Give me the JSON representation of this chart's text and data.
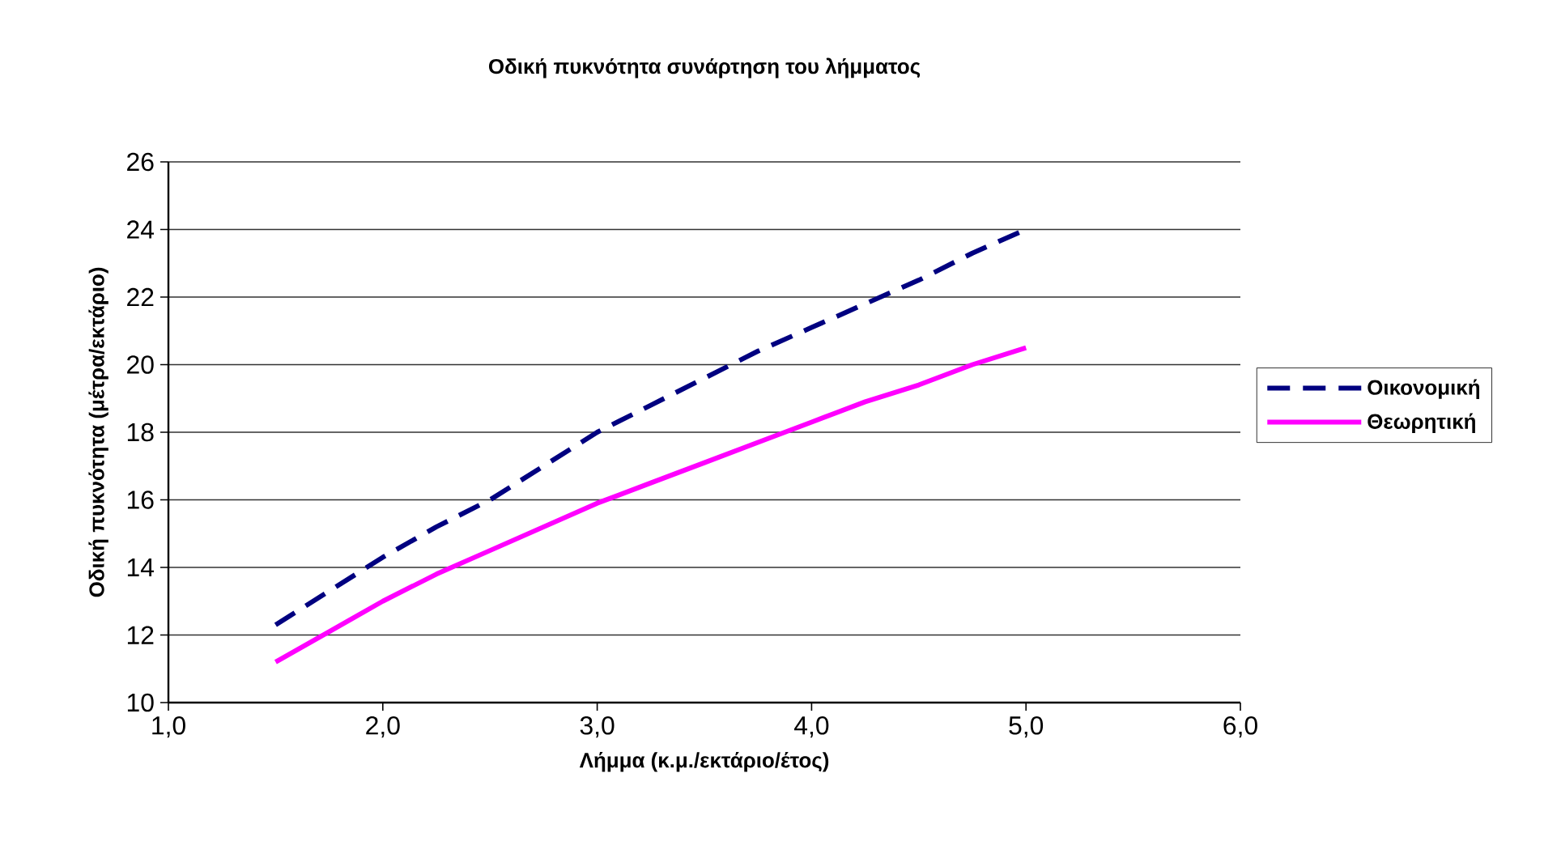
{
  "chart_data": {
    "type": "line",
    "title": "Οδική πυκνότητα συνάρτηση του λήμματος",
    "xlabel": "Λήμμα (κ.μ./εκτάριο/έτος)",
    "ylabel": "Οδική πυκνότητα (μέτρα/εκτάριο)",
    "x": [
      1.5,
      1.75,
      2.0,
      2.25,
      2.5,
      2.75,
      3.0,
      3.25,
      3.5,
      3.75,
      4.0,
      4.25,
      4.5,
      4.75,
      5.0
    ],
    "series": [
      {
        "name": "Οικονομική",
        "color": "#000080",
        "line_style": "dashed",
        "values": [
          12.3,
          13.3,
          14.3,
          15.2,
          16.0,
          17.0,
          18.0,
          18.8,
          19.6,
          20.4,
          21.1,
          21.8,
          22.5,
          23.3,
          24.0
        ]
      },
      {
        "name": "Θεωρητική",
        "color": "#ff00ff",
        "line_style": "solid",
        "values": [
          11.2,
          12.1,
          13.0,
          13.8,
          14.5,
          15.2,
          15.9,
          16.5,
          17.1,
          17.7,
          18.3,
          18.9,
          19.4,
          20.0,
          20.5
        ]
      }
    ],
    "xlim": [
      1.0,
      6.0
    ],
    "ylim": [
      10,
      26
    ],
    "xticks": [
      {
        "value": 1.0,
        "label": "1,0"
      },
      {
        "value": 2.0,
        "label": "2,0"
      },
      {
        "value": 3.0,
        "label": "3,0"
      },
      {
        "value": 4.0,
        "label": "4,0"
      },
      {
        "value": 5.0,
        "label": "5,0"
      },
      {
        "value": 6.0,
        "label": "6,0"
      }
    ],
    "yticks": [
      10,
      12,
      14,
      16,
      18,
      20,
      22,
      24,
      26
    ],
    "grid": "y",
    "legend": "right"
  }
}
